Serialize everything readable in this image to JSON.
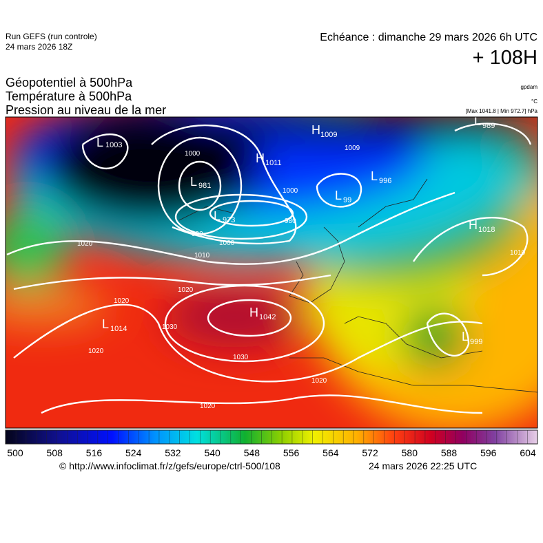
{
  "header": {
    "run": "Run GEFS (run controle)",
    "date": "24 mars 2026 18Z",
    "echeance": "Echéance : dimanche 29 mars 2026 6h UTC",
    "lead": "+ 108H",
    "fields": [
      "Géopotentiel à 500hPa",
      "Température à 500hPa",
      "Pression au niveau de la mer"
    ],
    "units": [
      "gpdam",
      "°C"
    ],
    "range": "[Max 1041.8 | Min 972.7] hPa"
  },
  "map": {
    "centers": [
      {
        "kind": "L",
        "value": 1003
      },
      {
        "kind": "H",
        "value": 1009
      },
      {
        "kind": "H",
        "value": 1011
      },
      {
        "kind": "L",
        "value": 981
      },
      {
        "kind": "L",
        "value": 973
      },
      {
        "kind": "L",
        "value": 989
      },
      {
        "kind": "L",
        "value": 996
      },
      {
        "kind": "L",
        "value": 99
      },
      {
        "kind": "H",
        "value": 1018
      },
      {
        "kind": "H",
        "value": 1042
      },
      {
        "kind": "L",
        "value": 1014
      },
      {
        "kind": "L",
        "value": 999
      }
    ],
    "isobar_labels": [
      1009,
      980,
      1000,
      990,
      1000,
      1010,
      1020,
      1020,
      1030,
      1030,
      1020,
      1020,
      1020,
      1010,
      1000,
      1020
    ]
  },
  "colorbar": {
    "ticks": [
      500,
      508,
      516,
      524,
      532,
      540,
      548,
      556,
      564,
      572,
      580,
      588,
      596,
      604
    ]
  },
  "footer": {
    "url": "© http://www.infoclimat.fr/z/gefs/europe/ctrl-500/108",
    "time": "24 mars 2026 22:25 UTC"
  }
}
